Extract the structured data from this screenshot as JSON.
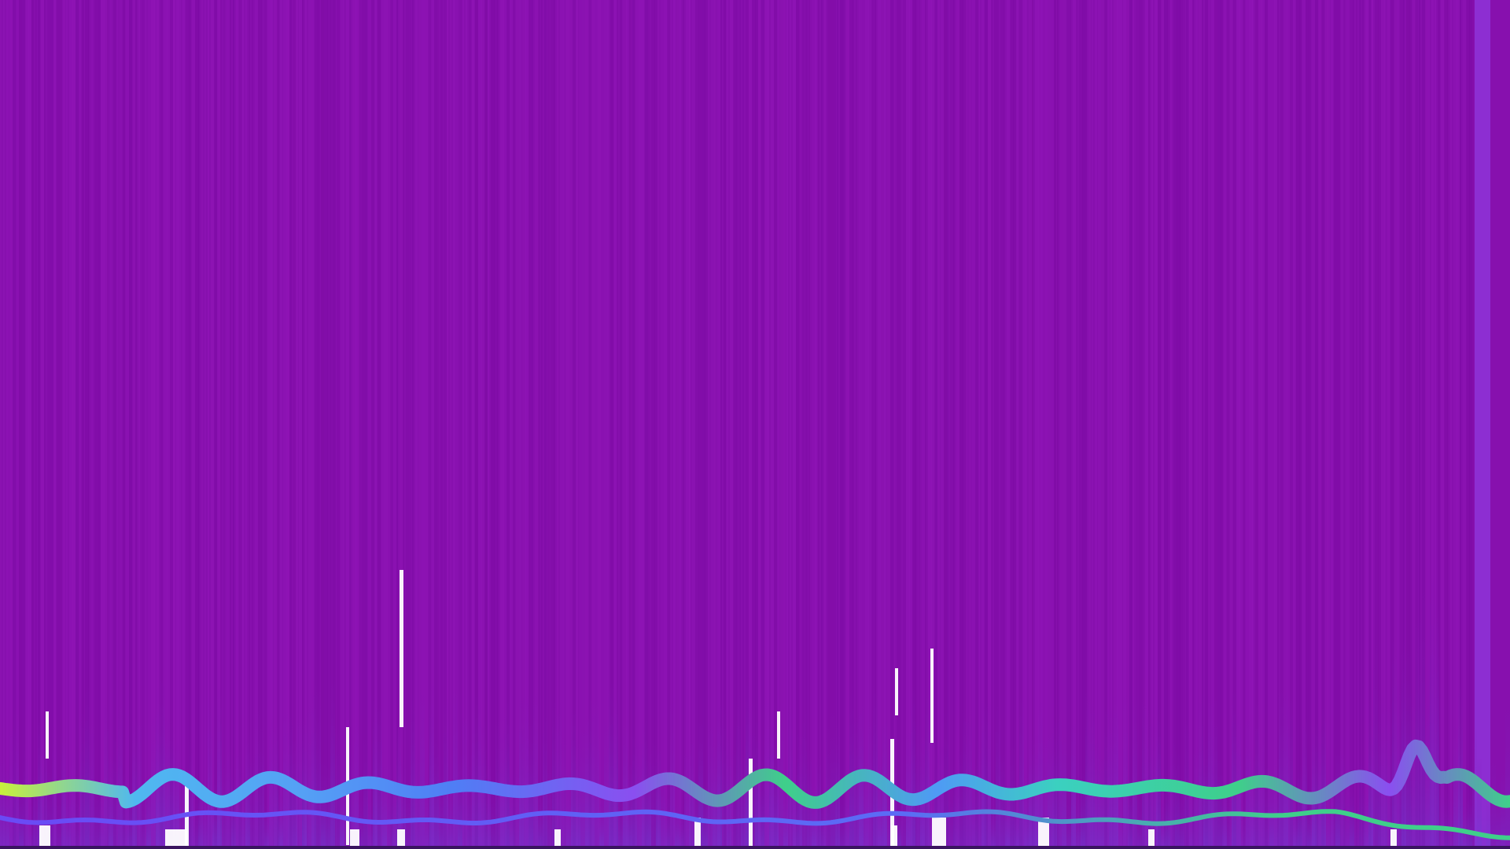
{
  "visualizer": {
    "colors": {
      "background": "#8710ae",
      "background_stripe_light": "#9216b8",
      "background_stripe_dark": "#7c0aa3",
      "side_band": "#8e32d6",
      "haze": "#7d3bd0",
      "white_bars": "#ffffff",
      "wave_gradient": [
        "#c8f03c",
        "#4fb8f0",
        "#5b6cf5",
        "#8a4ff0",
        "#3fcf8a",
        "#3bd0c0"
      ],
      "lower_wave": "#6a4af5"
    }
  }
}
